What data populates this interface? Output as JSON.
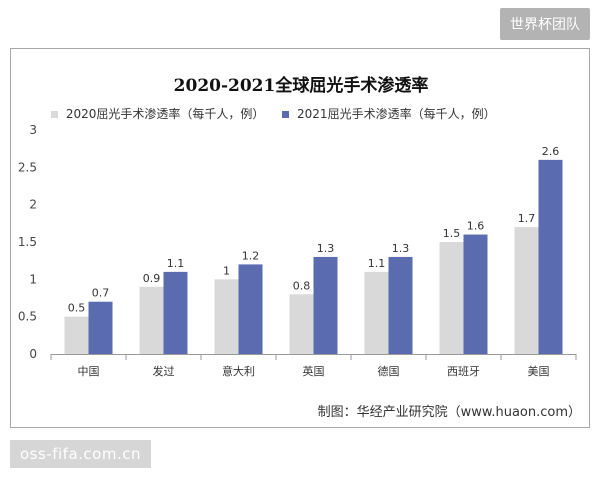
{
  "watermark_top": "世界杯团队",
  "watermark_bottom": "oss-fifa.com.cn",
  "chart_data": {
    "type": "bar",
    "title": "2020-2021全球屈光手术渗透率",
    "categories": [
      "中国",
      "发过",
      "意大利",
      "英国",
      "德国",
      "西班牙",
      "美国"
    ],
    "series": [
      {
        "name": "2020屈光手术渗透率（每千人，例）",
        "values": [
          0.5,
          0.9,
          1,
          0.8,
          1.1,
          1.5,
          1.7
        ],
        "color": "#d9d9d9"
      },
      {
        "name": "2021屈光手术渗透率（每千人，例）",
        "values": [
          0.7,
          1.1,
          1.2,
          1.3,
          1.3,
          1.6,
          2.6
        ],
        "color": "#5a6bb0"
      }
    ],
    "ylim": [
      0,
      3
    ],
    "yticks": [
      "0",
      "0.5",
      "1",
      "1.5",
      "2",
      "2.5",
      "3"
    ],
    "grid": false,
    "legend_position": "top",
    "source": "制图：华经产业研究院（www.huaon.com）"
  }
}
